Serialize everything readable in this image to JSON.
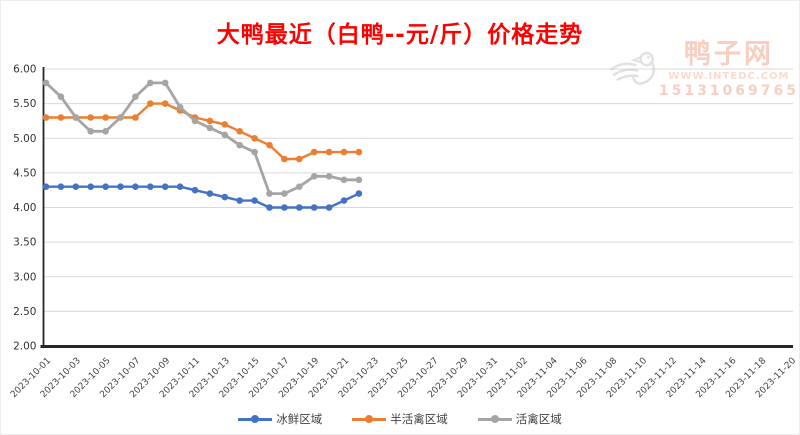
{
  "title": "大鸭最近（白鸭--元/斤）价格走势",
  "watermark": {
    "brand": "鸭子网",
    "site": "WWW.INTEDC.COM",
    "phone": "15131069765",
    "logo": "duck-logo"
  },
  "chart_data": {
    "type": "line",
    "title": "大鸭最近（白鸭--元/斤）价格走势",
    "xlabel": "",
    "ylabel": "",
    "ylim": [
      2.0,
      6.0
    ],
    "ytick_step": 0.5,
    "ytick_labels": [
      "6.00",
      "5.50",
      "5.00",
      "4.50",
      "4.00",
      "3.50",
      "3.00",
      "2.50",
      "2.00"
    ],
    "x_axis_labels": [
      "2023-10-01",
      "2023-10-03",
      "2023-10-05",
      "2023-10-07",
      "2023-10-09",
      "2023-10-11",
      "2023-10-13",
      "2023-10-15",
      "2023-10-17",
      "2023-10-19",
      "2023-10-21",
      "2023-10-23",
      "2023-10-25",
      "2023-10-27",
      "2023-10-29",
      "2023-10-31",
      "2023-11-02",
      "2023-11-04",
      "2023-11-06",
      "2023-11-08",
      "2023-11-10",
      "2023-11-12",
      "2023-11-14",
      "2023-11-16",
      "2023-11-18",
      "2023-11-20"
    ],
    "series_x_start": "2023-10-01",
    "series_x_step_days": 1,
    "grid": true,
    "legend_position": "bottom",
    "series": [
      {
        "name": "冰鲜区域",
        "color": "#4472C4",
        "values": [
          4.3,
          4.3,
          4.3,
          4.3,
          4.3,
          4.3,
          4.3,
          4.3,
          4.3,
          4.3,
          4.25,
          4.2,
          4.15,
          4.1,
          4.1,
          4.0,
          4.0,
          4.0,
          4.0,
          4.0,
          4.1,
          4.2
        ]
      },
      {
        "name": "半活禽区域",
        "color": "#ED7D31",
        "values": [
          5.3,
          5.3,
          5.3,
          5.3,
          5.3,
          5.3,
          5.3,
          5.5,
          5.5,
          5.4,
          5.3,
          5.25,
          5.2,
          5.1,
          5.0,
          4.9,
          4.7,
          4.7,
          4.8,
          4.8,
          4.8,
          4.8
        ]
      },
      {
        "name": "活禽区域",
        "color": "#A5A5A5",
        "values": [
          5.8,
          5.6,
          5.3,
          5.1,
          5.1,
          5.3,
          5.6,
          5.8,
          5.8,
          5.45,
          5.25,
          5.15,
          5.05,
          4.9,
          4.8,
          4.2,
          4.2,
          4.3,
          4.45,
          4.45,
          4.4,
          4.4
        ]
      }
    ],
    "axis_color": "#262626",
    "gridline_color": "#d9d9d9",
    "title_color": "#fe0000"
  }
}
